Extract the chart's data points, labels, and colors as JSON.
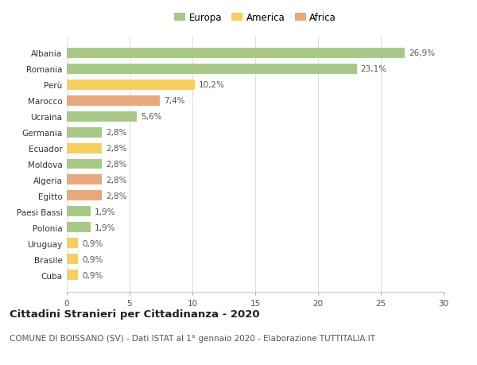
{
  "countries": [
    "Albania",
    "Romania",
    "Perù",
    "Marocco",
    "Ucraina",
    "Germania",
    "Ecuador",
    "Moldova",
    "Algeria",
    "Egitto",
    "Paesi Bassi",
    "Polonia",
    "Uruguay",
    "Brasile",
    "Cuba"
  ],
  "values": [
    26.9,
    23.1,
    10.2,
    7.4,
    5.6,
    2.8,
    2.8,
    2.8,
    2.8,
    2.8,
    1.9,
    1.9,
    0.9,
    0.9,
    0.9
  ],
  "continents": [
    "Europa",
    "Europa",
    "America",
    "Africa",
    "Europa",
    "Europa",
    "America",
    "Europa",
    "Africa",
    "Africa",
    "Europa",
    "Europa",
    "America",
    "America",
    "America"
  ],
  "labels": [
    "26,9%",
    "23,1%",
    "10,2%",
    "7,4%",
    "5,6%",
    "2,8%",
    "2,8%",
    "2,8%",
    "2,8%",
    "2,8%",
    "1,9%",
    "1,9%",
    "0,9%",
    "0,9%",
    "0,9%"
  ],
  "colors": {
    "Europa": "#a8c888",
    "America": "#f5d060",
    "Africa": "#e8a87c"
  },
  "title_bold": "Cittadini Stranieri per Cittadinanza - 2020",
  "subtitle": "COMUNE DI BOISSANO (SV) - Dati ISTAT al 1° gennaio 2020 - Elaborazione TUTTITALIA.IT",
  "xlim": [
    0,
    30
  ],
  "xticks": [
    0,
    5,
    10,
    15,
    20,
    25,
    30
  ],
  "background_color": "#ffffff",
  "grid_color": "#e0e0e0",
  "bar_height": 0.65,
  "label_fontsize": 7.5,
  "tick_fontsize": 7.5,
  "title_fontsize": 9.5,
  "subtitle_fontsize": 7.5,
  "legend_fontsize": 8.5
}
